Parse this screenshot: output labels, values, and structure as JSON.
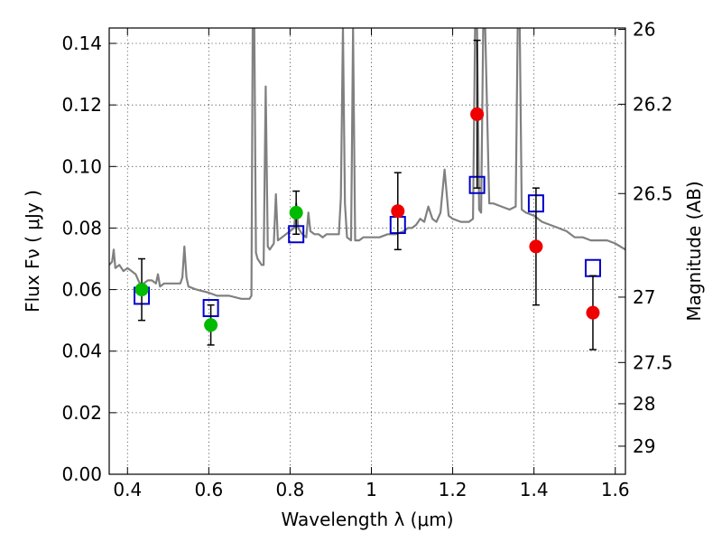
{
  "chart_data": {
    "type": "scatter",
    "title": "",
    "xlabel": "Wavelength  λ (μm)",
    "ylabel": "Flux  Fν  ( μJy )",
    "ylabel_right": "Magnitude (AB)",
    "xlim": [
      0.355,
      1.625
    ],
    "ylim": [
      0.0,
      0.145
    ],
    "grid": true,
    "x_ticks": [
      0.4,
      0.6,
      0.8,
      1.0,
      1.2,
      1.4,
      1.6
    ],
    "x_tick_labels": [
      "0.4",
      "0.6",
      "0.8",
      "1",
      "1.2",
      "1.4",
      "1.6"
    ],
    "y_ticks": [
      0.0,
      0.02,
      0.04,
      0.06,
      0.08,
      0.1,
      0.12,
      0.14
    ],
    "y_tick_labels": [
      "0.00",
      "0.02",
      "0.04",
      "0.06",
      "0.08",
      "0.10",
      "0.12",
      "0.14"
    ],
    "right_ticks": [
      26,
      26.2,
      26.5,
      27,
      27.5,
      28,
      29
    ],
    "right_tick_labels": [
      "26",
      "26.2",
      "26.5",
      "27",
      "27.5",
      "28",
      "29"
    ],
    "series": [
      {
        "kind": "spectrum",
        "color": "#808080",
        "points": [
          [
            0.355,
            0.068
          ],
          [
            0.362,
            0.069
          ],
          [
            0.366,
            0.073
          ],
          [
            0.37,
            0.067
          ],
          [
            0.38,
            0.068
          ],
          [
            0.39,
            0.066
          ],
          [
            0.4,
            0.067
          ],
          [
            0.41,
            0.066
          ],
          [
            0.42,
            0.065
          ],
          [
            0.43,
            0.062
          ],
          [
            0.44,
            0.062
          ],
          [
            0.45,
            0.063
          ],
          [
            0.46,
            0.063
          ],
          [
            0.47,
            0.062
          ],
          [
            0.475,
            0.065
          ],
          [
            0.48,
            0.061
          ],
          [
            0.49,
            0.062
          ],
          [
            0.5,
            0.062
          ],
          [
            0.51,
            0.062
          ],
          [
            0.52,
            0.062
          ],
          [
            0.53,
            0.062
          ],
          [
            0.535,
            0.064
          ],
          [
            0.54,
            0.074
          ],
          [
            0.545,
            0.064
          ],
          [
            0.55,
            0.061
          ],
          [
            0.57,
            0.06
          ],
          [
            0.6,
            0.059
          ],
          [
            0.62,
            0.058
          ],
          [
            0.65,
            0.058
          ],
          [
            0.68,
            0.057
          ],
          [
            0.7,
            0.057
          ],
          [
            0.705,
            0.058
          ],
          [
            0.708,
            0.145
          ],
          [
            0.712,
            0.145
          ],
          [
            0.716,
            0.072
          ],
          [
            0.72,
            0.07
          ],
          [
            0.73,
            0.068
          ],
          [
            0.735,
            0.068
          ],
          [
            0.74,
            0.126
          ],
          [
            0.745,
            0.074
          ],
          [
            0.75,
            0.073
          ],
          [
            0.76,
            0.075
          ],
          [
            0.765,
            0.091
          ],
          [
            0.77,
            0.076
          ],
          [
            0.78,
            0.077
          ],
          [
            0.79,
            0.078
          ],
          [
            0.8,
            0.079
          ],
          [
            0.81,
            0.08
          ],
          [
            0.815,
            0.088
          ],
          [
            0.82,
            0.08
          ],
          [
            0.83,
            0.078
          ],
          [
            0.84,
            0.077
          ],
          [
            0.845,
            0.085
          ],
          [
            0.85,
            0.079
          ],
          [
            0.86,
            0.078
          ],
          [
            0.87,
            0.078
          ],
          [
            0.88,
            0.077
          ],
          [
            0.89,
            0.078
          ],
          [
            0.9,
            0.078
          ],
          [
            0.91,
            0.078
          ],
          [
            0.92,
            0.078
          ],
          [
            0.925,
            0.09
          ],
          [
            0.93,
            0.145
          ],
          [
            0.935,
            0.088
          ],
          [
            0.94,
            0.077
          ],
          [
            0.95,
            0.076
          ],
          [
            0.955,
            0.145
          ],
          [
            0.96,
            0.076
          ],
          [
            0.97,
            0.076
          ],
          [
            0.98,
            0.077
          ],
          [
            0.99,
            0.077
          ],
          [
            1.0,
            0.077
          ],
          [
            1.02,
            0.077
          ],
          [
            1.04,
            0.078
          ],
          [
            1.06,
            0.078
          ],
          [
            1.08,
            0.079
          ],
          [
            1.09,
            0.08
          ],
          [
            1.1,
            0.08
          ],
          [
            1.11,
            0.081
          ],
          [
            1.12,
            0.083
          ],
          [
            1.13,
            0.082
          ],
          [
            1.14,
            0.087
          ],
          [
            1.15,
            0.083
          ],
          [
            1.16,
            0.082
          ],
          [
            1.17,
            0.085
          ],
          [
            1.18,
            0.099
          ],
          [
            1.19,
            0.084
          ],
          [
            1.2,
            0.083
          ],
          [
            1.22,
            0.082
          ],
          [
            1.24,
            0.082
          ],
          [
            1.25,
            0.083
          ],
          [
            1.255,
            0.145
          ],
          [
            1.26,
            0.145
          ],
          [
            1.265,
            0.086
          ],
          [
            1.27,
            0.085
          ],
          [
            1.275,
            0.145
          ],
          [
            1.28,
            0.145
          ],
          [
            1.29,
            0.088
          ],
          [
            1.3,
            0.088
          ],
          [
            1.32,
            0.087
          ],
          [
            1.34,
            0.086
          ],
          [
            1.355,
            0.087
          ],
          [
            1.36,
            0.145
          ],
          [
            1.365,
            0.145
          ],
          [
            1.37,
            0.086
          ],
          [
            1.38,
            0.085
          ],
          [
            1.4,
            0.084
          ],
          [
            1.42,
            0.082
          ],
          [
            1.44,
            0.081
          ],
          [
            1.46,
            0.08
          ],
          [
            1.48,
            0.079
          ],
          [
            1.5,
            0.077
          ],
          [
            1.52,
            0.077
          ],
          [
            1.54,
            0.076
          ],
          [
            1.56,
            0.076
          ],
          [
            1.58,
            0.076
          ],
          [
            1.6,
            0.075
          ],
          [
            1.625,
            0.073
          ]
        ]
      },
      {
        "kind": "model-boxes",
        "color": "#0000cc",
        "points": [
          [
            0.435,
            0.058
          ],
          [
            0.605,
            0.054
          ],
          [
            0.815,
            0.078
          ],
          [
            1.065,
            0.081
          ],
          [
            1.26,
            0.094
          ],
          [
            1.405,
            0.088
          ],
          [
            1.545,
            0.067
          ]
        ]
      },
      {
        "kind": "optical-points",
        "color": "#00bb00",
        "points": [
          [
            0.435,
            0.06,
            0.01
          ],
          [
            0.605,
            0.0485,
            0.0065
          ],
          [
            0.815,
            0.085,
            0.007
          ]
        ]
      },
      {
        "kind": "nir-points",
        "color": "#ee0000",
        "points": [
          [
            1.065,
            0.0855,
            0.0125
          ],
          [
            1.26,
            0.117,
            0.024
          ],
          [
            1.405,
            0.074,
            0.019
          ],
          [
            1.545,
            0.0525,
            0.012
          ]
        ]
      }
    ]
  }
}
